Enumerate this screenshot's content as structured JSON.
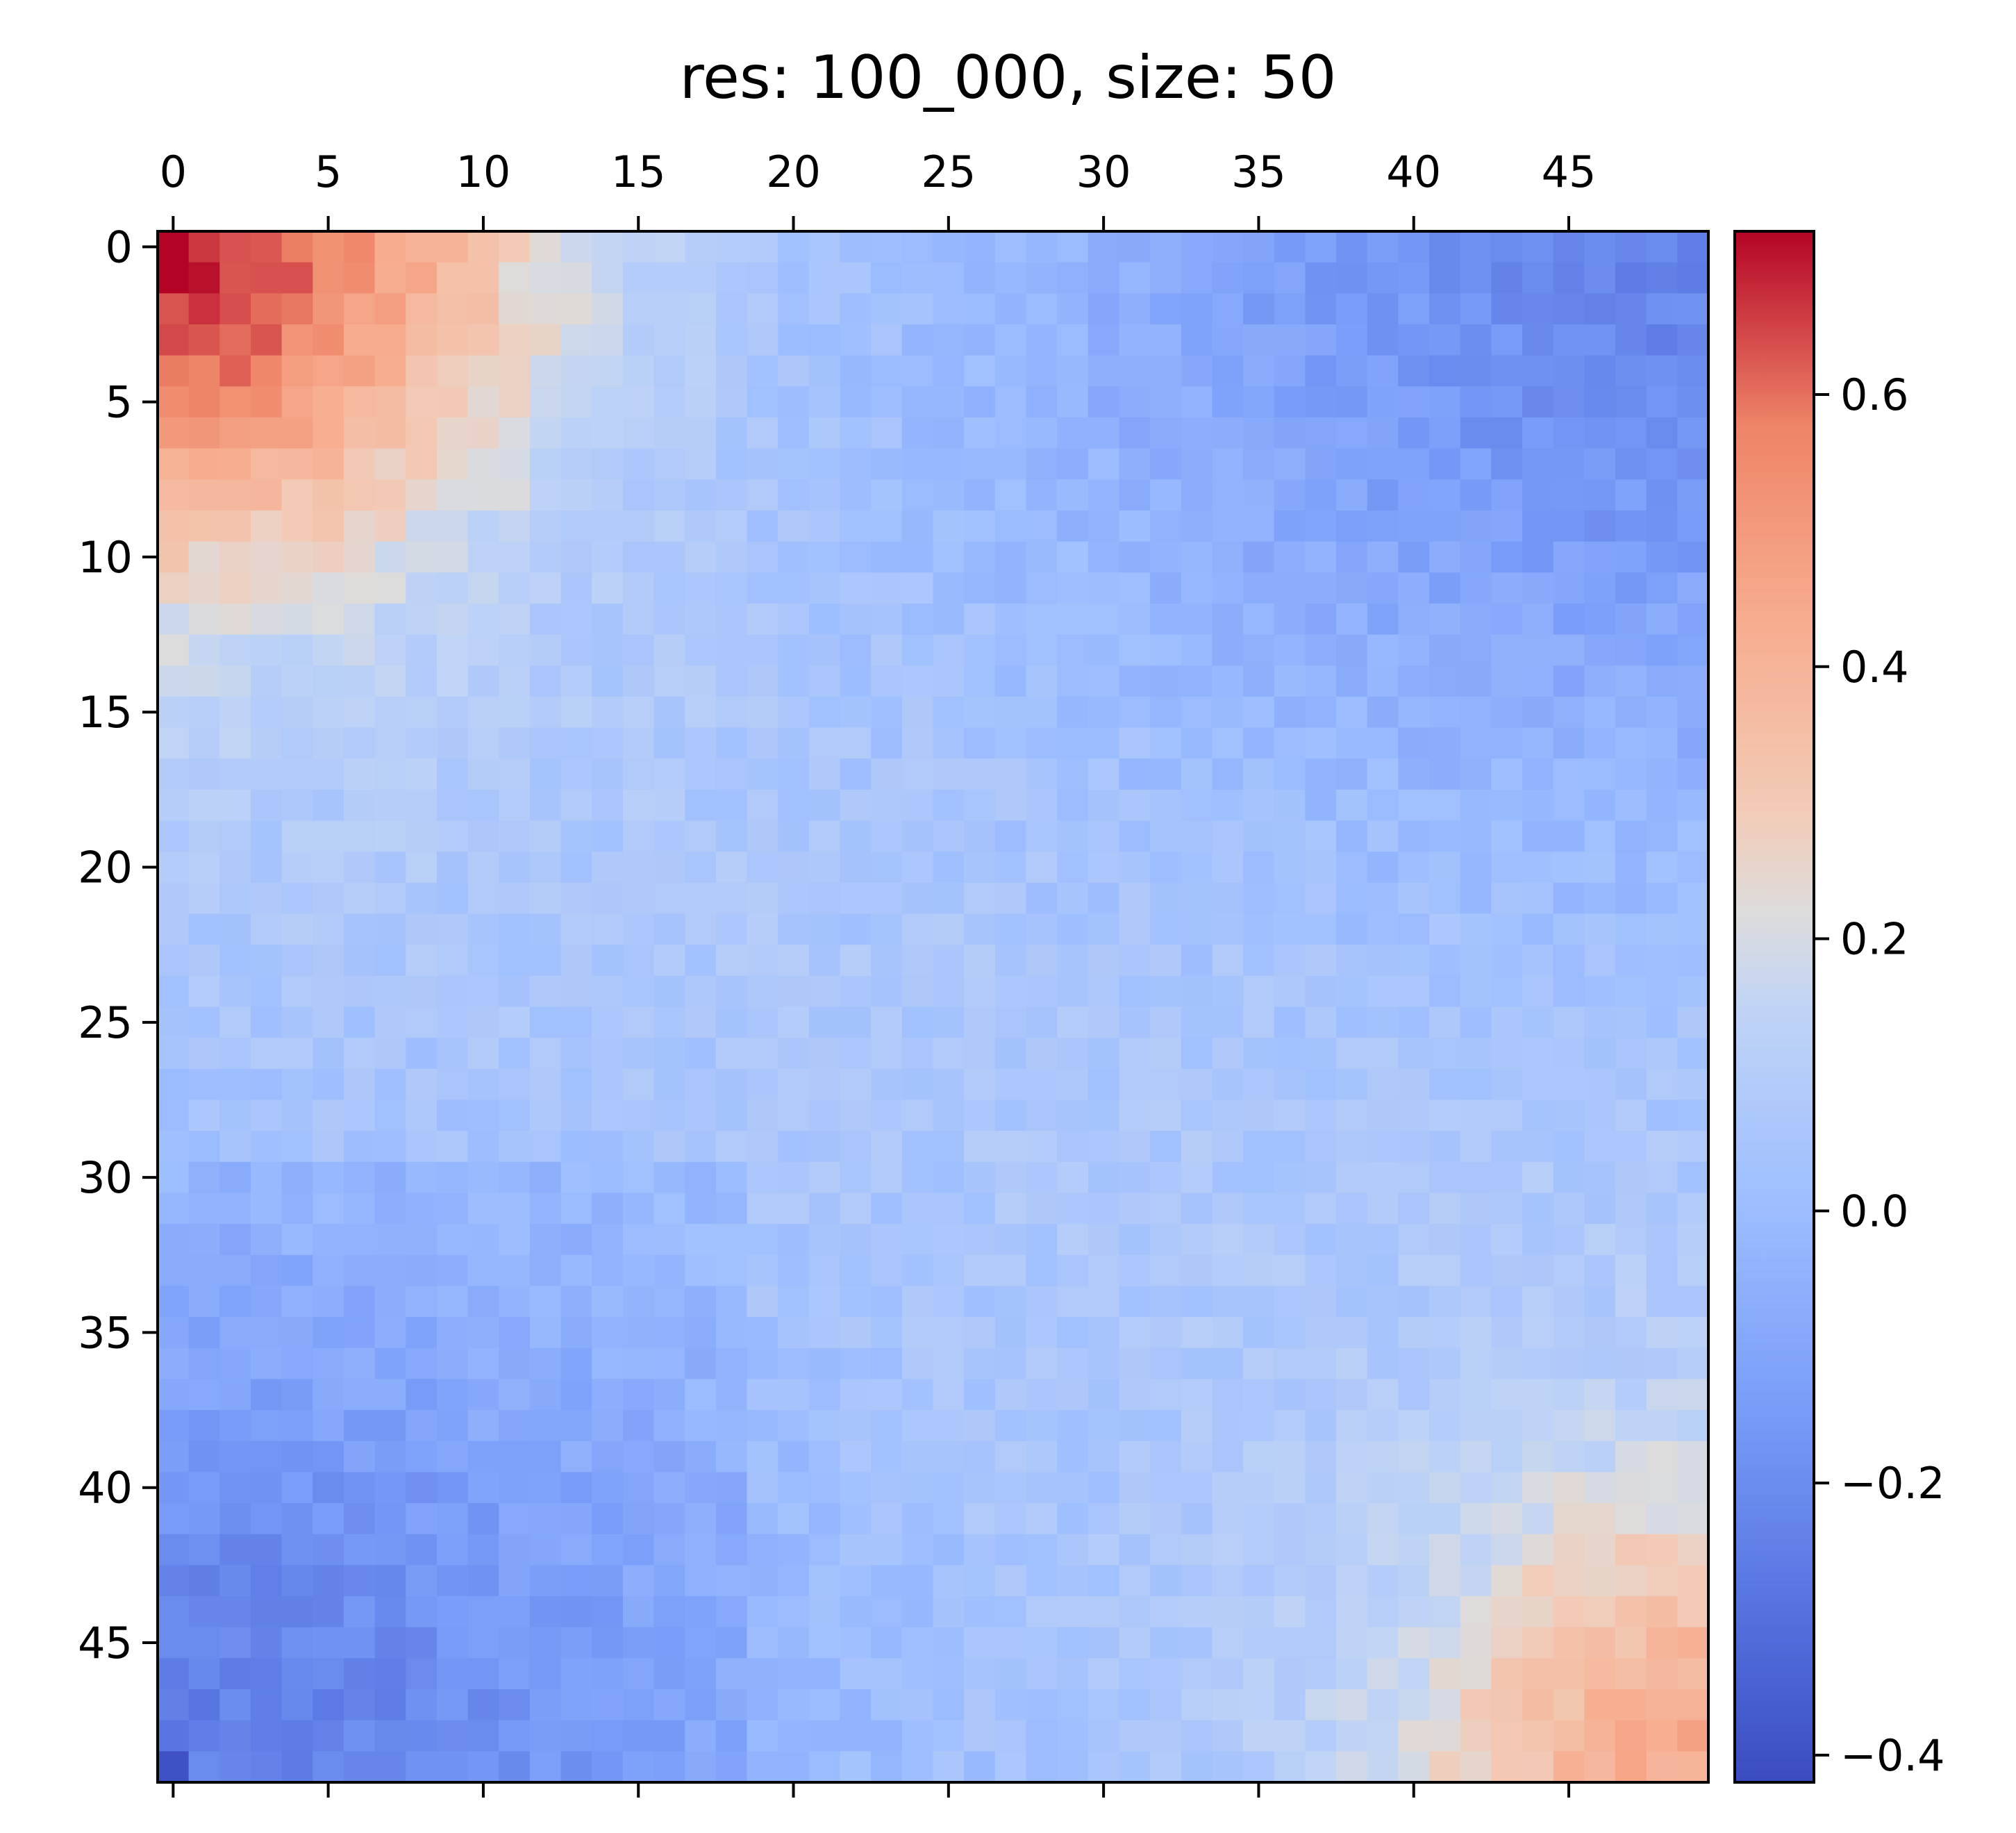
{
  "chart_data": {
    "type": "heatmap",
    "title": "res: 100_000, size: 50",
    "rows": 50,
    "cols": 50,
    "x_ticks": [
      0,
      5,
      10,
      15,
      20,
      25,
      30,
      35,
      40,
      45
    ],
    "y_ticks": [
      0,
      5,
      10,
      15,
      20,
      25,
      30,
      35,
      40,
      45
    ],
    "x_tick_position": "top",
    "colormap": "coolwarm",
    "colorbar": {
      "vmin": -0.42,
      "vmax": 0.72,
      "ticks": [
        -0.4,
        -0.2,
        0.0,
        0.2,
        0.4,
        0.6
      ],
      "tick_labels": [
        "−0.4",
        "−0.2",
        "0.0",
        "0.2",
        "0.4",
        "0.6"
      ],
      "placement": "right"
    },
    "structure": {
      "block_top_left": {
        "rows": [
          0,
          9
        ],
        "cols": [
          0,
          9
        ],
        "value": 0.5
      },
      "block_bottom_right": {
        "rows": [
          38,
          49
        ],
        "cols": [
          38,
          49
        ],
        "value": 0.4
      },
      "off_diagonal_top_right": -0.22,
      "off_diagonal_bottom_left": -0.2,
      "midrange": 0.08,
      "corner_values": {
        "r0c0": 0.72,
        "r49c0": -0.4,
        "r0c49": -0.12,
        "r49c49": 0.42
      }
    }
  },
  "colors": {
    "low": "#3b4cc0",
    "mid": "#dddddd",
    "high": "#b40426"
  }
}
